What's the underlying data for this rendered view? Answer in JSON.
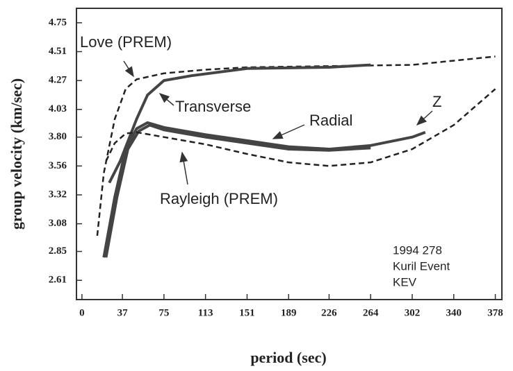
{
  "chart_data": {
    "type": "line",
    "xlabel": "period (sec)",
    "ylabel": "group velocity (km/sec)",
    "xlim": [
      -5,
      384
    ],
    "ylim": [
      2.45,
      4.87
    ],
    "xticks": [
      0,
      37,
      75,
      113,
      151,
      189,
      226,
      264,
      302,
      340,
      378
    ],
    "yticks": [
      2.61,
      2.85,
      3.08,
      3.32,
      3.56,
      {
        "value": 3.8,
        "label": "3.80"
      },
      4.03,
      4.27,
      4.51,
      4.75
    ],
    "series": [
      {
        "name": "Love (PREM)",
        "color": "#222222",
        "dashed": true,
        "x": [
          14,
          20,
          30,
          40,
          50,
          75,
          113,
          151,
          226,
          302,
          378
        ],
        "values": [
          2.98,
          3.5,
          3.95,
          4.2,
          4.28,
          4.33,
          4.36,
          4.38,
          4.39,
          4.4,
          4.47
        ]
      },
      {
        "name": "Transverse",
        "color": "#444444",
        "dashed": false,
        "x": [
          25,
          35,
          50,
          60,
          75,
          100,
          151,
          226,
          264
        ],
        "values": [
          3.42,
          3.6,
          3.95,
          4.15,
          4.27,
          4.31,
          4.37,
          4.38,
          4.4
        ]
      },
      {
        "name": "Radial",
        "color": "#444444",
        "dashed": false,
        "x": [
          22,
          32,
          42,
          52,
          62,
          75,
          113,
          151,
          189,
          226,
          264
        ],
        "values": [
          2.8,
          3.3,
          3.7,
          3.85,
          3.9,
          3.86,
          3.8,
          3.75,
          3.7,
          3.69,
          3.71
        ]
      },
      {
        "name": "Z",
        "color": "#444444",
        "dashed": false,
        "x": [
          20,
          30,
          40,
          50,
          60,
          75,
          113,
          151,
          189,
          226,
          264,
          302,
          314
        ],
        "values": [
          2.8,
          3.3,
          3.7,
          3.87,
          3.92,
          3.88,
          3.82,
          3.77,
          3.72,
          3.7,
          3.73,
          3.8,
          3.84
        ]
      },
      {
        "name": "Rayleigh (PREM)",
        "color": "#222222",
        "dashed": true,
        "x": [
          22,
          30,
          40,
          50,
          75,
          113,
          151,
          189,
          226,
          264,
          302,
          340,
          378
        ],
        "values": [
          3.6,
          3.75,
          3.83,
          3.84,
          3.8,
          3.74,
          3.66,
          3.59,
          3.56,
          3.59,
          3.7,
          3.9,
          4.2
        ]
      }
    ],
    "annotations": [
      "1994 278",
      "Kuril Event",
      "KEV"
    ]
  }
}
